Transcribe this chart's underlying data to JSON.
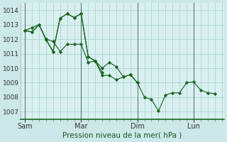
{
  "background_color": "#cce8e8",
  "plot_bg_color": "#daf0f0",
  "grid_color": "#aad4d4",
  "line_color": "#1a6620",
  "marker_color": "#1a6620",
  "xlabel": "Pression niveau de la mer( hPa )",
  "ylim": [
    1006.5,
    1014.5
  ],
  "yticks": [
    1007,
    1008,
    1009,
    1010,
    1011,
    1012,
    1013,
    1014
  ],
  "xtick_labels": [
    "Sam",
    "Mar",
    "Dim",
    "Lun"
  ],
  "xtick_positions": [
    0,
    48,
    96,
    144
  ],
  "vline_positions": [
    0,
    48,
    96,
    144
  ],
  "xlim": [
    -4,
    170
  ],
  "series": [
    {
      "x": [
        0,
        6,
        12,
        18,
        24,
        30,
        36,
        42,
        48,
        54,
        60,
        66,
        72,
        78,
        84,
        90,
        96,
        102,
        108,
        114,
        120,
        126,
        132,
        138,
        144,
        150,
        156,
        162
      ],
      "y": [
        1012.6,
        1012.8,
        1013.0,
        1012.0,
        1011.85,
        1011.15,
        1011.65,
        1011.65,
        1011.65,
        1010.4,
        1010.5,
        1010.0,
        1010.4,
        1010.1,
        1009.4,
        1009.55,
        1009.0,
        1008.0,
        1007.85,
        1007.05,
        1008.15,
        1008.3,
        1008.3,
        1009.0,
        1009.05,
        1008.5,
        1008.3,
        1008.25
      ]
    },
    {
      "x": [
        0,
        6,
        12,
        18,
        24,
        30,
        36,
        42,
        48,
        54,
        60,
        66,
        72,
        78,
        84,
        90,
        96
      ],
      "y": [
        1012.6,
        1012.5,
        1013.0,
        1011.95,
        1011.15,
        1013.45,
        1013.75,
        1013.5,
        1013.75,
        1010.8,
        1010.5,
        1009.5,
        1009.5,
        1009.2,
        1009.4,
        1009.55,
        1009.0
      ]
    },
    {
      "x": [
        0,
        6,
        12,
        18,
        24,
        30,
        36,
        42,
        48,
        54,
        60,
        66
      ],
      "y": [
        1012.6,
        1012.5,
        1013.0,
        1012.0,
        1011.15,
        1013.45,
        1013.75,
        1013.5,
        1013.75,
        1010.8,
        1010.5,
        1009.7
      ]
    }
  ]
}
